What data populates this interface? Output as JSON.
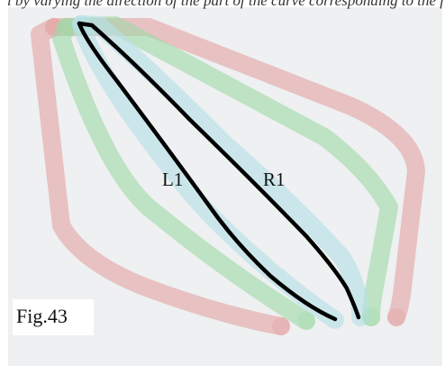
{
  "caption_fragment": "l by varying the direction of the part of the curve corresponding to the first fit and the Corresponding control in the line right-sided y as passed by type L",
  "figure_label": "Fig.43",
  "curve_labels": {
    "left": "L1",
    "right": "R1"
  },
  "colors": {
    "panel_background": "#eef0f1",
    "outer_band": "#e39a9a",
    "middle_band": "#9fd8a6",
    "inner_band": "#b9e0e8",
    "core_curve": "#000000"
  }
}
